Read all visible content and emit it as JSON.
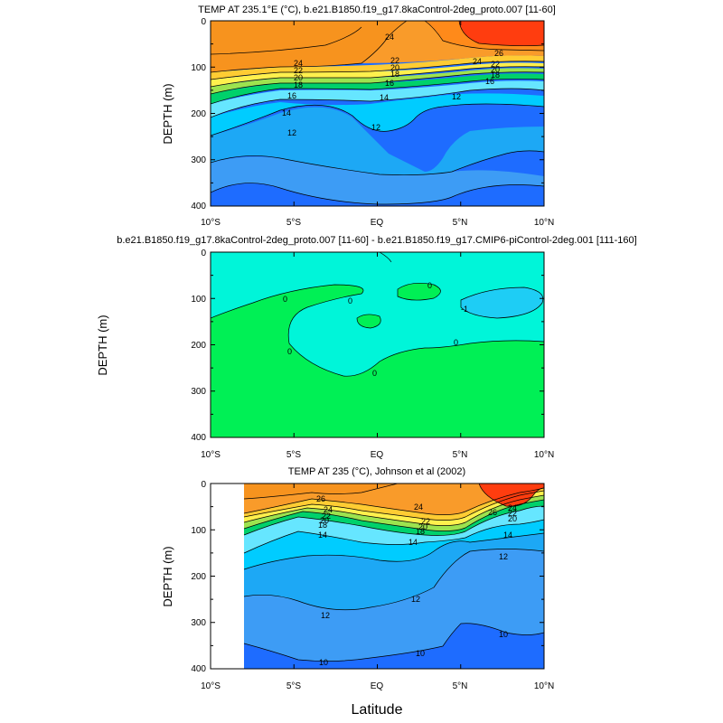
{
  "chart_data": [
    {
      "type": "contour",
      "title": "TEMP AT 235.1°E (°C), b.e21.B1850.f19_g17.8kaControl-2deg_proto.007 [11-60]",
      "ylabel": "DEPTH (m)",
      "xlabel": "",
      "x_ticks": [
        "10°S",
        "5°S",
        "EQ",
        "5°N",
        "10°N"
      ],
      "y_ticks": [
        "0",
        "100",
        "200",
        "300",
        "400"
      ],
      "xlim": [
        -10,
        10
      ],
      "ylim": [
        0,
        400
      ],
      "contour_labels": [
        "24",
        "22",
        "20",
        "18",
        "16",
        "14",
        "12",
        "24",
        "22",
        "20",
        "18",
        "16",
        "14",
        "12",
        "26",
        "24",
        "22",
        "20",
        "18",
        "16",
        "12"
      ]
    },
    {
      "type": "contour",
      "title": "b.e21.B1850.f19_g17.8kaControl-2deg_proto.007 [11-60] - b.e21.B1850.f19_g17.CMIP6-piControl-2deg.001 [111-160]",
      "ylabel": "DEPTH (m)",
      "xlabel": "",
      "x_ticks": [
        "10°S",
        "5°S",
        "EQ",
        "5°N",
        "10°N"
      ],
      "y_ticks": [
        "0",
        "100",
        "200",
        "300",
        "400"
      ],
      "xlim": [
        -10,
        10
      ],
      "ylim": [
        0,
        400
      ],
      "contour_labels": [
        "0",
        "0",
        "0",
        "0",
        "0",
        "0",
        "-1"
      ]
    },
    {
      "type": "contour",
      "title": "TEMP AT 235 (°C), Johnson et al (2002)",
      "ylabel": "DEPTH (m)",
      "xlabel": "Latitude",
      "x_ticks": [
        "10°S",
        "5°S",
        "EQ",
        "5°N",
        "10°N"
      ],
      "y_ticks": [
        "0",
        "100",
        "200",
        "300",
        "400"
      ],
      "xlim": [
        -10,
        10
      ],
      "ylim": [
        0,
        400
      ],
      "contour_labels": [
        "26",
        "24",
        "22",
        "20",
        "18",
        "14",
        "24",
        "22",
        "20",
        "18",
        "14",
        "26",
        "24",
        "22",
        "20",
        "14",
        "12",
        "12",
        "12",
        "10",
        "10",
        "10"
      ]
    }
  ]
}
